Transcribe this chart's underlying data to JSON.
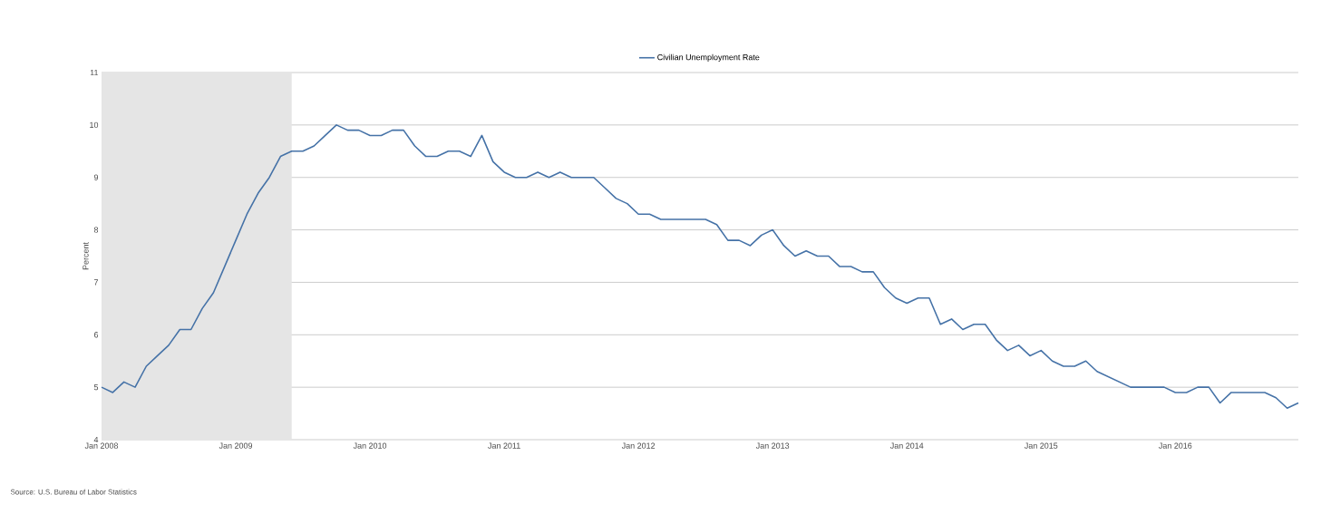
{
  "chart_data": {
    "type": "line",
    "ylabel": "Percent",
    "annotations": [
      "Source: U.S. Bureau of Labor Statistics"
    ],
    "x": [
      "2008-01",
      "2008-02",
      "2008-03",
      "2008-04",
      "2008-05",
      "2008-06",
      "2008-07",
      "2008-08",
      "2008-09",
      "2008-10",
      "2008-11",
      "2008-12",
      "2009-01",
      "2009-02",
      "2009-03",
      "2009-04",
      "2009-05",
      "2009-06",
      "2009-07",
      "2009-08",
      "2009-09",
      "2009-10",
      "2009-11",
      "2009-12",
      "2010-01",
      "2010-02",
      "2010-03",
      "2010-04",
      "2010-05",
      "2010-06",
      "2010-07",
      "2010-08",
      "2010-09",
      "2010-10",
      "2010-11",
      "2010-12",
      "2011-01",
      "2011-02",
      "2011-03",
      "2011-04",
      "2011-05",
      "2011-06",
      "2011-07",
      "2011-08",
      "2011-09",
      "2011-10",
      "2011-11",
      "2011-12",
      "2012-01",
      "2012-02",
      "2012-03",
      "2012-04",
      "2012-05",
      "2012-06",
      "2012-07",
      "2012-08",
      "2012-09",
      "2012-10",
      "2012-11",
      "2012-12",
      "2013-01",
      "2013-02",
      "2013-03",
      "2013-04",
      "2013-05",
      "2013-06",
      "2013-07",
      "2013-08",
      "2013-09",
      "2013-10",
      "2013-11",
      "2013-12",
      "2014-01",
      "2014-02",
      "2014-03",
      "2014-04",
      "2014-05",
      "2014-06",
      "2014-07",
      "2014-08",
      "2014-09",
      "2014-10",
      "2014-11",
      "2014-12",
      "2015-01",
      "2015-02",
      "2015-03",
      "2015-04",
      "2015-05",
      "2015-06",
      "2015-07",
      "2015-08",
      "2015-09",
      "2015-10",
      "2015-11",
      "2015-12",
      "2016-01",
      "2016-02",
      "2016-03",
      "2016-04",
      "2016-05",
      "2016-06",
      "2016-07",
      "2016-08",
      "2016-09",
      "2016-10",
      "2016-11",
      "2016-12"
    ],
    "series": [
      {
        "name": "Civilian Unemployment Rate",
        "color": "#4572a7",
        "values": [
          5.0,
          4.9,
          5.1,
          5.0,
          5.4,
          5.6,
          5.8,
          6.1,
          6.1,
          6.5,
          6.8,
          7.3,
          7.8,
          8.3,
          8.7,
          9.0,
          9.4,
          9.5,
          9.5,
          9.6,
          9.8,
          10.0,
          9.9,
          9.9,
          9.8,
          9.8,
          9.9,
          9.9,
          9.6,
          9.4,
          9.4,
          9.5,
          9.5,
          9.4,
          9.8,
          9.3,
          9.1,
          9.0,
          9.0,
          9.1,
          9.0,
          9.1,
          9.0,
          9.0,
          9.0,
          8.8,
          8.6,
          8.5,
          8.3,
          8.3,
          8.2,
          8.2,
          8.2,
          8.2,
          8.2,
          8.1,
          7.8,
          7.8,
          7.7,
          7.9,
          8.0,
          7.7,
          7.5,
          7.6,
          7.5,
          7.5,
          7.3,
          7.3,
          7.2,
          7.2,
          6.9,
          6.7,
          6.6,
          6.7,
          6.7,
          6.2,
          6.3,
          6.1,
          6.2,
          6.2,
          5.9,
          5.7,
          5.8,
          5.6,
          5.7,
          5.5,
          5.4,
          5.4,
          5.5,
          5.3,
          5.2,
          5.1,
          5.0,
          5.0,
          5.0,
          5.0,
          4.9,
          4.9,
          5.0,
          5.0,
          4.7,
          4.9,
          4.9,
          4.9,
          4.9,
          4.8,
          4.6,
          4.7
        ]
      }
    ],
    "xlim": [
      "2008-01",
      "2016-12"
    ],
    "xticks": [
      {
        "value": "2008-01",
        "label": "Jan 2008"
      },
      {
        "value": "2009-01",
        "label": "Jan 2009"
      },
      {
        "value": "2010-01",
        "label": "Jan 2010"
      },
      {
        "value": "2011-01",
        "label": "Jan 2011"
      },
      {
        "value": "2012-01",
        "label": "Jan 2012"
      },
      {
        "value": "2013-01",
        "label": "Jan 2013"
      },
      {
        "value": "2014-01",
        "label": "Jan 2014"
      },
      {
        "value": "2015-01",
        "label": "Jan 2015"
      },
      {
        "value": "2016-01",
        "label": "Jan 2016"
      }
    ],
    "ylim": [
      4,
      11
    ],
    "yticks": [
      4,
      5,
      6,
      7,
      8,
      9,
      10,
      11
    ],
    "bands": [
      {
        "axis": "x",
        "from": "2008-01",
        "to": "2009-06",
        "color": "#e5e5e5"
      }
    ],
    "grid": "y",
    "legend": "top",
    "marker": "none",
    "line_style": "solid"
  }
}
